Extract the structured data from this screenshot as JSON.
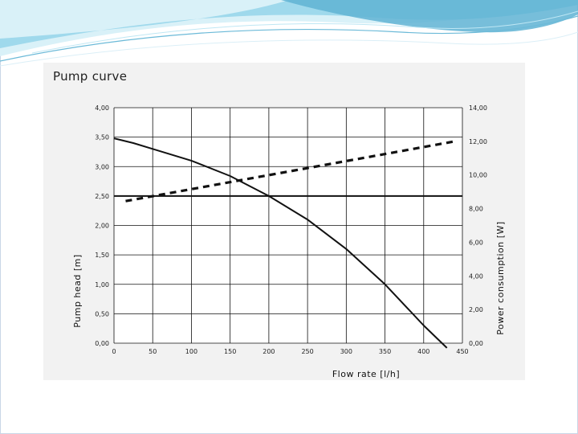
{
  "colors": {
    "swoosh_dark": "#4ba3c7",
    "swoosh_light": "#a8dff0",
    "panel_background": "#f2f2f2",
    "plot_background": "#ffffff",
    "grid": "#111111",
    "series": "#111111"
  },
  "chart_data": {
    "type": "line",
    "title": "Pump curve",
    "xlabel": "Flow rate [l/h]",
    "ylabel": "Pump head [m]",
    "y2label": "Power consumption [W]",
    "xlim": [
      0,
      450
    ],
    "ylim": [
      0,
      4
    ],
    "y2lim": [
      0,
      14
    ],
    "x_ticks": [
      "0",
      "50",
      "100",
      "150",
      "200",
      "250",
      "300",
      "350",
      "400",
      "450"
    ],
    "y_ticks": [
      "0,00",
      "0,50",
      "1,00",
      "1,50",
      "2,00",
      "2,50",
      "3,00",
      "3,50",
      "4,00"
    ],
    "y2_ticks": [
      "0,00",
      "2,00",
      "4,00",
      "6,00",
      "8,00",
      "10,00",
      "12,00",
      "14,00"
    ],
    "grid": true,
    "legend": "none",
    "series": [
      {
        "axis": "left",
        "style": "solid",
        "x": [
          0,
          25,
          50,
          100,
          150,
          200,
          250,
          300,
          350,
          400,
          430
        ],
        "y": [
          3.48,
          3.4,
          3.3,
          3.1,
          2.84,
          2.5,
          2.1,
          1.6,
          1.0,
          0.3,
          -0.08
        ]
      },
      {
        "axis": "right",
        "style": "dashed",
        "x": [
          15,
          440
        ],
        "y": [
          8.45,
          12.0
        ]
      },
      {
        "axis": "left",
        "style": "solid",
        "x": [
          0,
          450
        ],
        "y": [
          2.5,
          2.5
        ]
      }
    ]
  }
}
